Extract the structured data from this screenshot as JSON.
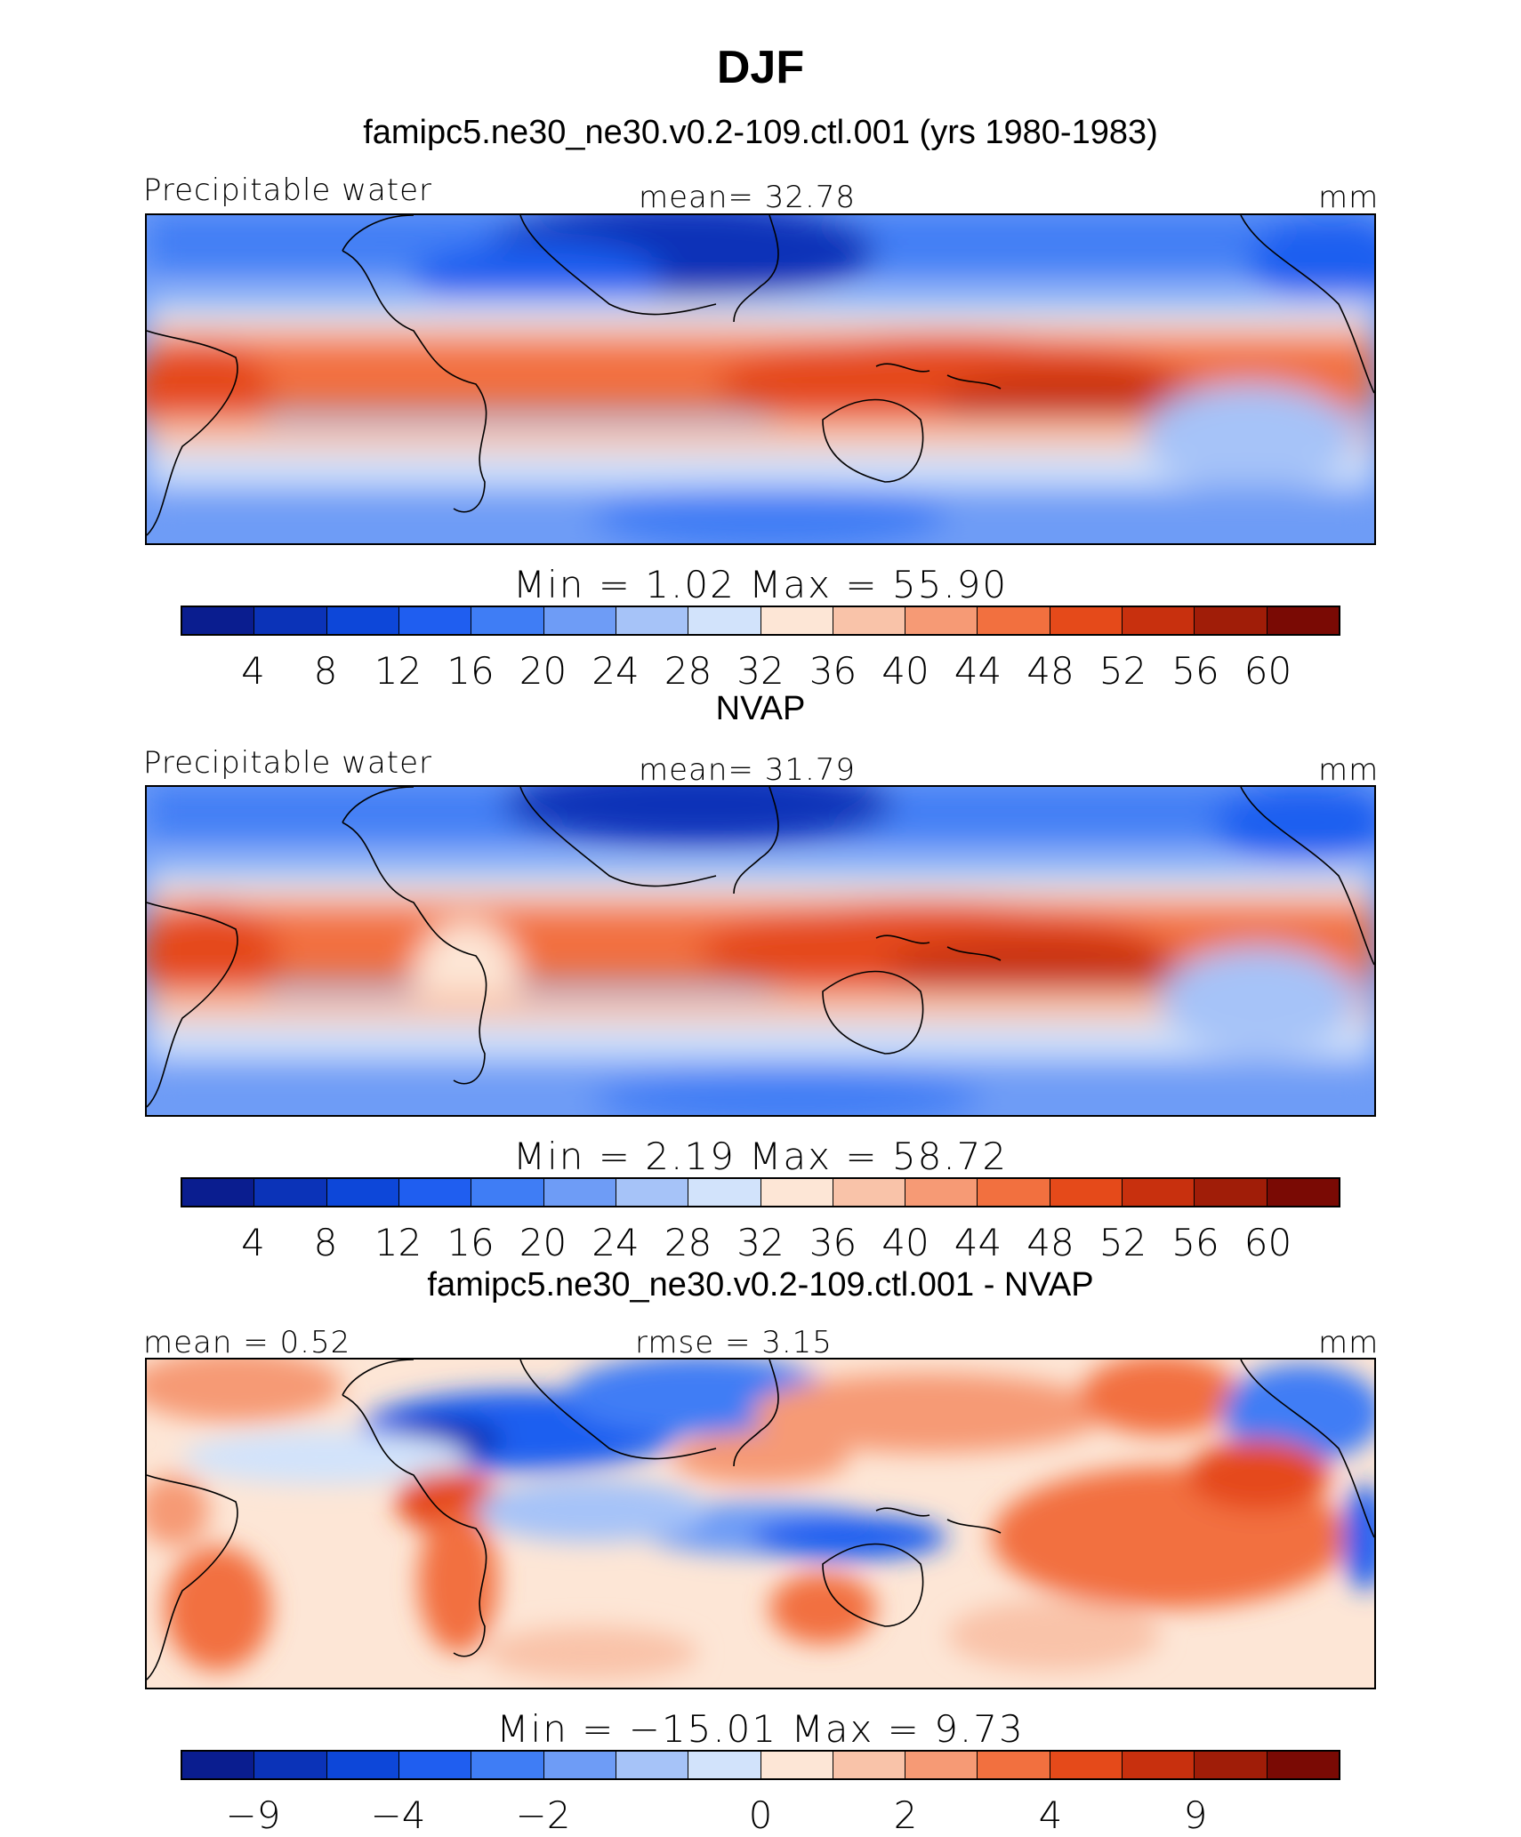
{
  "page": {
    "title": "DJF"
  },
  "palette": [
    "#0a1d8f",
    "#0b33b8",
    "#0d47d9",
    "#1f5ef0",
    "#3f7df5",
    "#6e9cf6",
    "#a6c3f8",
    "#d2e3fb",
    "#fde6d6",
    "#f9c3a9",
    "#f69a75",
    "#f2703f",
    "#e54a1a",
    "#c8300e",
    "#a01d08",
    "#7a0a04"
  ],
  "panels": [
    {
      "subtitle": "famipc5.ne30_ne30.v0.2-109.ctl.001 (yrs 1980-1983)",
      "left_label": "Precipitable water",
      "center_label": "mean=  32.78",
      "right_label": "mm",
      "minmax": "Min  =    1.02  Max  =    55.90",
      "ticks": [
        "4",
        "8",
        "12",
        "16",
        "20",
        "24",
        "28",
        "32",
        "36",
        "40",
        "44",
        "48",
        "52",
        "56",
        "60"
      ]
    },
    {
      "subtitle": "NVAP",
      "left_label": "Precipitable water",
      "center_label": "mean=  31.79",
      "right_label": "mm",
      "minmax": "Min  =    2.19  Max  =    58.72",
      "ticks": [
        "4",
        "8",
        "12",
        "16",
        "20",
        "24",
        "28",
        "32",
        "36",
        "40",
        "44",
        "48",
        "52",
        "56",
        "60"
      ]
    },
    {
      "subtitle": "famipc5.ne30_ne30.v0.2-109.ctl.001 - NVAP",
      "left_label": "mean  =    0.52",
      "center_label": "rmse  =    3.15",
      "right_label": "mm",
      "minmax": "Min  =  −15.01  Max  =     9.73",
      "ticks": [
        "−9",
        "−4",
        "−2",
        "0",
        "2",
        "4",
        "9"
      ]
    }
  ],
  "chart_data": [
    {
      "type": "heatmap",
      "title": "famipc5.ne30_ne30.v0.2-109.ctl.001 (yrs 1980-1983)",
      "variable": "Precipitable water",
      "units": "mm",
      "mean": 32.78,
      "min": 1.02,
      "max": 55.9,
      "levels": [
        4,
        8,
        12,
        16,
        20,
        24,
        28,
        32,
        36,
        40,
        44,
        48,
        52,
        56,
        60
      ]
    },
    {
      "type": "heatmap",
      "title": "NVAP",
      "variable": "Precipitable water",
      "units": "mm",
      "mean": 31.79,
      "min": 2.19,
      "max": 58.72,
      "levels": [
        4,
        8,
        12,
        16,
        20,
        24,
        28,
        32,
        36,
        40,
        44,
        48,
        52,
        56,
        60
      ]
    },
    {
      "type": "heatmap",
      "title": "famipc5.ne30_ne30.v0.2-109.ctl.001 - NVAP",
      "units": "mm",
      "mean": 0.52,
      "rmse": 3.15,
      "min": -15.01,
      "max": 9.73,
      "levels": [
        -9,
        -4,
        -2,
        0,
        2,
        4,
        9
      ]
    }
  ]
}
